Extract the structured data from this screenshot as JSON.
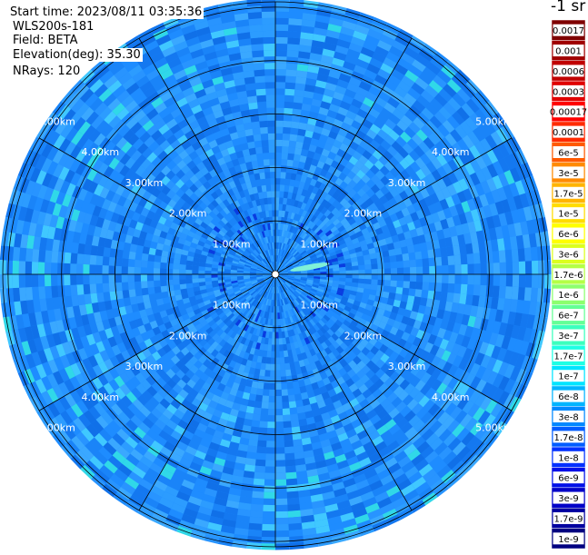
{
  "header": {
    "start_time": "Start time: 2023/08/11 03:35:36",
    "site": "WLS200s-181",
    "field": "Field: BETA",
    "elevation": "Elevation(deg): 35.30",
    "nrays": "NRays: 120"
  },
  "chart_data": {
    "type": "heatmap",
    "projection": "polar PPI",
    "field": "BETA",
    "units_label": "-1 sr",
    "range_ring_labels_km": [
      "1.00km",
      "2.00km",
      "3.00km",
      "4.00km",
      "5.00km"
    ],
    "range_rings_km": [
      1,
      2,
      3,
      4,
      5
    ],
    "max_range_km": 5.1,
    "radial_spokes_deg": [
      0,
      30,
      60,
      90,
      120,
      150,
      180,
      210,
      240,
      270,
      300,
      330
    ],
    "n_rays": 120,
    "colorbar": {
      "labels": [
        "0.0017",
        "0.001",
        "0.0006",
        "0.0003",
        "0.00017",
        "0.0001",
        "6e-5",
        "3e-5",
        "1.7e-5",
        "1e-5",
        "6e-6",
        "3e-6",
        "1.7e-6",
        "1e-6",
        "6e-7",
        "3e-7",
        "1.7e-7",
        "1e-7",
        "6e-8",
        "3e-8",
        "1.7e-8",
        "1e-8",
        "6e-9",
        "3e-9",
        "1.7e-9",
        "1e-9"
      ],
      "colors": [
        "#7f0000",
        "#a00000",
        "#c00000",
        "#e00000",
        "#ff0000",
        "#ff2a00",
        "#ff5a00",
        "#ff8a00",
        "#ffb400",
        "#ffdc00",
        "#ffff00",
        "#dcff1e",
        "#b4ff46",
        "#8cff6e",
        "#64ff96",
        "#3cffbe",
        "#1effe4",
        "#00e4ff",
        "#00b4ff",
        "#0088ff",
        "#005cff",
        "#0030ff",
        "#0010e8",
        "#0000c8",
        "#0000a0",
        "#000080"
      ],
      "scale": "log"
    },
    "background_value": "3e-8"
  }
}
